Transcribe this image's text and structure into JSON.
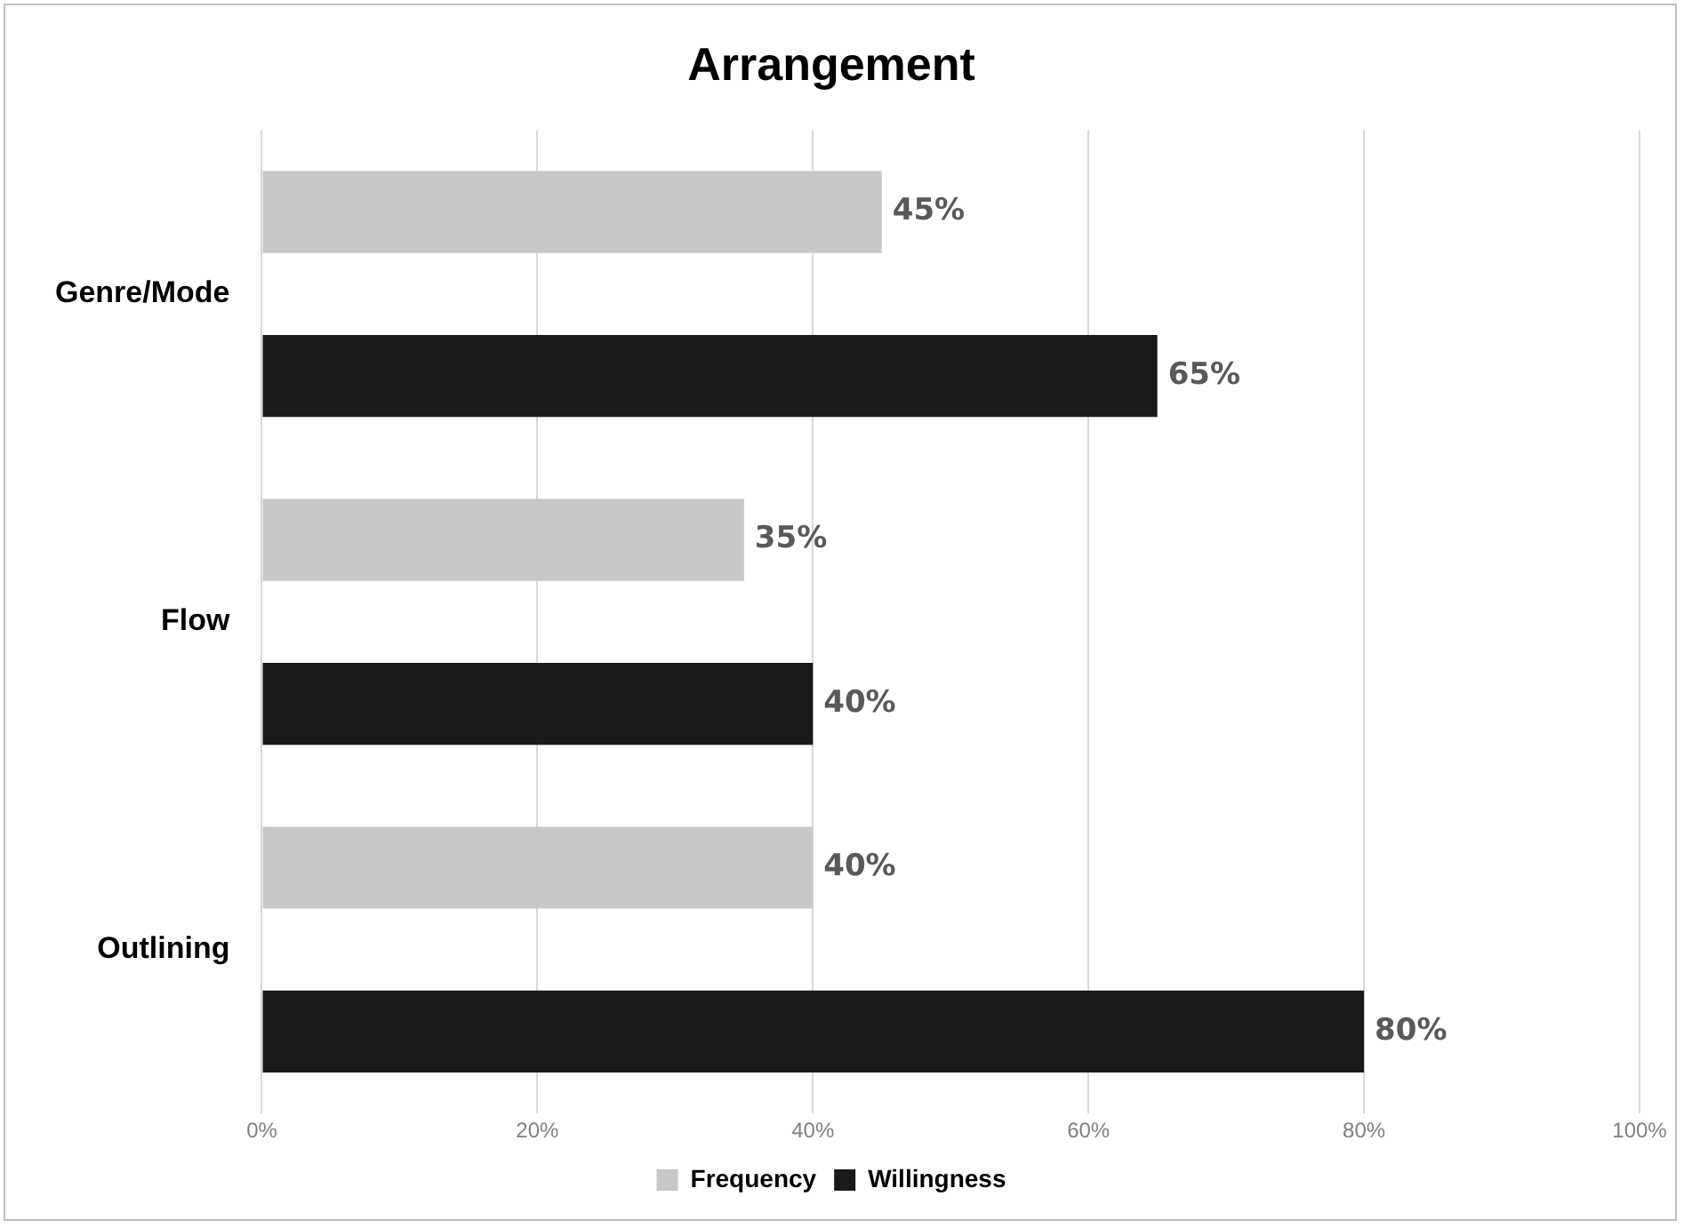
{
  "chart_data": {
    "type": "bar",
    "orientation": "horizontal",
    "title": "Arrangement",
    "categories": [
      "Genre/Mode",
      "Flow",
      "Outlining"
    ],
    "series": [
      {
        "name": "Frequency",
        "color": "#c8c8c8",
        "values": [
          45,
          35,
          40
        ],
        "value_labels": [
          "45%",
          "35%",
          "40%"
        ]
      },
      {
        "name": "Willingness",
        "color": "#1a1a1a",
        "values": [
          65,
          40,
          80
        ],
        "value_labels": [
          "65%",
          "40%",
          "80%"
        ]
      }
    ],
    "xlim": [
      0,
      100
    ],
    "xticks": [
      {
        "value": 0,
        "label": "0%"
      },
      {
        "value": 20,
        "label": "20%"
      },
      {
        "value": 40,
        "label": "40%"
      },
      {
        "value": 60,
        "label": "60%"
      },
      {
        "value": 80,
        "label": "80%"
      },
      {
        "value": 100,
        "label": "100%"
      }
    ],
    "grid": "x",
    "legend": "bottom"
  }
}
